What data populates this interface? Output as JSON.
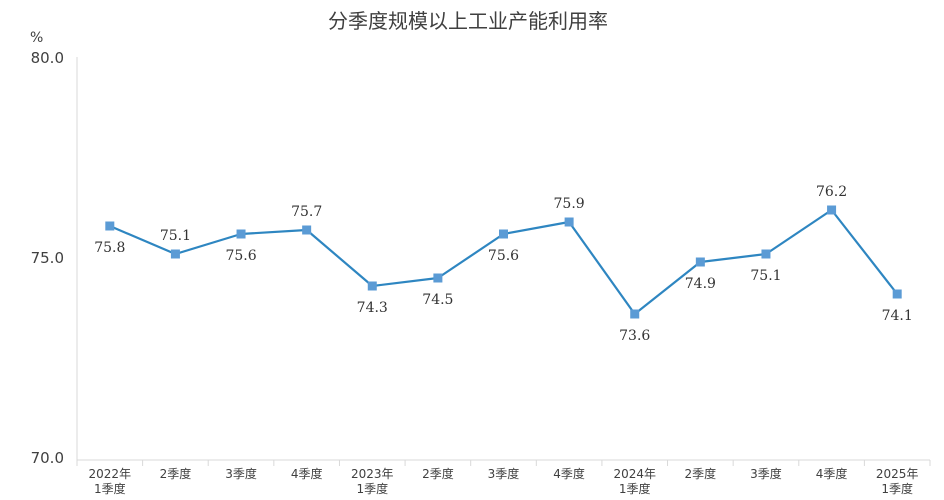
{
  "chart_data": {
    "type": "line",
    "title": "分季度规模以上工业产能利用率",
    "unit": "%",
    "ylim": [
      70.0,
      80.0
    ],
    "yticks": [
      "70.0",
      "75.0",
      "80.0"
    ],
    "categories": [
      [
        "2022年",
        "1季度"
      ],
      [
        "2季度"
      ],
      [
        "3季度"
      ],
      [
        "4季度"
      ],
      [
        "2023年",
        "1季度"
      ],
      [
        "2季度"
      ],
      [
        "3季度"
      ],
      [
        "4季度"
      ],
      [
        "2024年",
        "1季度"
      ],
      [
        "2季度"
      ],
      [
        "3季度"
      ],
      [
        "4季度"
      ],
      [
        "2025年",
        "1季度"
      ]
    ],
    "values": [
      75.8,
      75.1,
      75.6,
      75.7,
      74.3,
      74.5,
      75.6,
      75.9,
      73.6,
      74.9,
      75.1,
      76.2,
      74.1
    ],
    "value_labels": [
      "75.8",
      "75.1",
      "75.6",
      "75.7",
      "74.3",
      "74.5",
      "75.6",
      "75.9",
      "73.6",
      "74.9",
      "75.1",
      "76.2",
      "74.1"
    ],
    "label_pos": [
      "below",
      "above",
      "below",
      "above",
      "below",
      "below",
      "below",
      "above",
      "below",
      "below",
      "below",
      "above",
      "below"
    ],
    "line_color": "#2e86c1",
    "marker_color": "#5b9bd5",
    "grid": false
  }
}
